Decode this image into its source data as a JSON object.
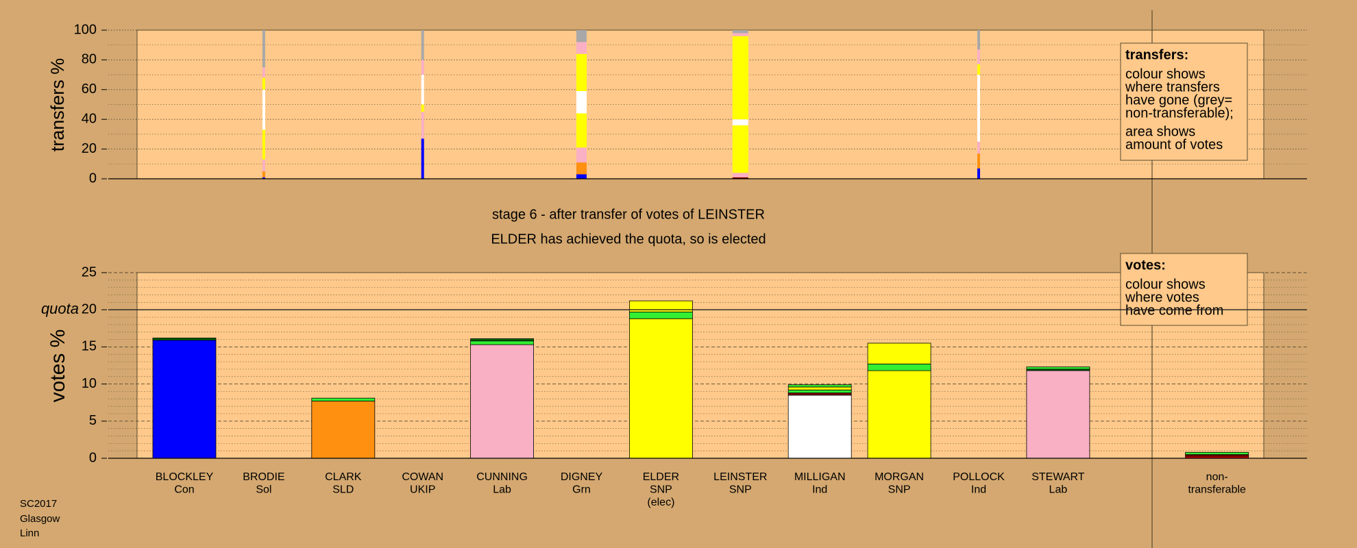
{
  "chart_data": [
    {
      "type": "bar",
      "ylabel": "transfers %",
      "ylim": [
        0,
        100
      ],
      "yticks": [
        0,
        20,
        40,
        60,
        80,
        100
      ],
      "grid": true,
      "legend": {
        "title": "transfers:",
        "lines": [
          "colour shows",
          "where transfers",
          "have gone (grey=",
          "non-transferable);",
          "area shows",
          "amount of votes"
        ]
      },
      "stacks": [
        null,
        {
          "width": 0.4,
          "segments": [
            {
              "color": "#0000ff",
              "value": 1
            },
            {
              "color": "#ff9010",
              "value": 4
            },
            {
              "color": "#f9b0c4",
              "value": 8
            },
            {
              "color": "#ffff00",
              "value": 20
            },
            {
              "color": "#ffffff",
              "value": 27
            },
            {
              "color": "#ffff00",
              "value": 8
            },
            {
              "color": "#f9b0c4",
              "value": 7
            },
            {
              "color": "#a8a8a8",
              "value": 25
            }
          ]
        },
        null,
        {
          "width": 0.4,
          "segments": [
            {
              "color": "#0000ff",
              "value": 27
            },
            {
              "color": "#f9b0c4",
              "value": 18
            },
            {
              "color": "#ffff00",
              "value": 5
            },
            {
              "color": "#ffffff",
              "value": 20
            },
            {
              "color": "#f9b0c4",
              "value": 10
            },
            {
              "color": "#a8a8a8",
              "value": 20
            }
          ]
        },
        null,
        {
          "width": 1.5,
          "segments": [
            {
              "color": "#0000ff",
              "value": 3
            },
            {
              "color": "#ff9010",
              "value": 8
            },
            {
              "color": "#f9b0c4",
              "value": 10
            },
            {
              "color": "#ffff00",
              "value": 23
            },
            {
              "color": "#ffffff",
              "value": 15
            },
            {
              "color": "#ffff00",
              "value": 25
            },
            {
              "color": "#f9b0c4",
              "value": 8
            },
            {
              "color": "#a8a8a8",
              "value": 8
            }
          ]
        },
        null,
        {
          "width": 2.3,
          "segments": [
            {
              "color": "#800000",
              "value": 1
            },
            {
              "color": "#f9b0c4",
              "value": 3
            },
            {
              "color": "#ffff00",
              "value": 32
            },
            {
              "color": "#ffffff",
              "value": 4
            },
            {
              "color": "#ffff00",
              "value": 56
            },
            {
              "color": "#f9b0c4",
              "value": 2
            },
            {
              "color": "#a8a8a8",
              "value": 2
            }
          ]
        },
        null,
        null,
        {
          "width": 0.4,
          "segments": [
            {
              "color": "#0000ff",
              "value": 7
            },
            {
              "color": "#ff9010",
              "value": 10
            },
            {
              "color": "#f9b0c4",
              "value": 8
            },
            {
              "color": "#ffffff",
              "value": 45
            },
            {
              "color": "#ffff00",
              "value": 7
            },
            {
              "color": "#f9b0c4",
              "value": 10
            },
            {
              "color": "#a8a8a8",
              "value": 13
            }
          ]
        },
        null,
        null,
        null
      ]
    },
    {
      "type": "bar",
      "title": "stage 6 - after transfer of votes of LEINSTER",
      "subtitle": "ELDER has achieved the quota, so is elected",
      "ylabel": "votes %",
      "ylim": [
        0,
        25
      ],
      "yticks": [
        0,
        5,
        10,
        15,
        20,
        25
      ],
      "quota": {
        "value": 20,
        "label": "quota"
      },
      "grid": true,
      "legend": {
        "title": "votes:",
        "lines": [
          "colour shows",
          "where votes",
          "have come from"
        ]
      },
      "categories": [
        [
          "BLOCKLEY",
          "Con"
        ],
        [
          "BRODIE",
          "Sol"
        ],
        [
          "CLARK",
          "SLD"
        ],
        [
          "COWAN",
          "UKIP"
        ],
        [
          "CUNNING",
          "Lab"
        ],
        [
          "DIGNEY",
          "Grn"
        ],
        [
          "ELDER",
          "SNP",
          "(elec)"
        ],
        [
          "LEINSTER",
          "SNP"
        ],
        [
          "MILLIGAN",
          "Ind"
        ],
        [
          "MORGAN",
          "SNP"
        ],
        [
          "POLLOCK",
          "Ind"
        ],
        [
          "STEWART",
          "Lab"
        ],
        null,
        [
          "non-",
          "transferable"
        ]
      ],
      "stacks": [
        [
          {
            "color": "#0000ff",
            "value": 15.9
          },
          {
            "color": "#006400",
            "value": 0.3
          }
        ],
        null,
        [
          {
            "color": "#ff9010",
            "value": 7.7
          },
          {
            "color": "#33ee33",
            "value": 0.4
          }
        ],
        null,
        [
          {
            "color": "#f9b0c4",
            "value": 15.3
          },
          {
            "color": "#33ee33",
            "value": 0.5
          },
          {
            "color": "#006400",
            "value": 0.3
          }
        ],
        null,
        [
          {
            "color": "#ffff00",
            "value": 18.8
          },
          {
            "color": "#33ee33",
            "value": 0.9
          },
          {
            "color": "#ffff00",
            "value": 1.5
          }
        ],
        null,
        [
          {
            "color": "#ffffff",
            "value": 8.5
          },
          {
            "color": "#800000",
            "value": 0.3
          },
          {
            "color": "#33ee33",
            "value": 0.4
          },
          {
            "color": "#ffff00",
            "value": 0.4
          },
          {
            "color": "#33ee33",
            "value": 0.3
          }
        ],
        [
          {
            "color": "#ffff00",
            "value": 11.8
          },
          {
            "color": "#33ee33",
            "value": 0.9
          },
          {
            "color": "#ffff00",
            "value": 2.8
          }
        ],
        null,
        [
          {
            "color": "#f9b0c4",
            "value": 11.8
          },
          {
            "color": "#006400",
            "value": 0.2
          },
          {
            "color": "#33ee33",
            "value": 0.3
          }
        ],
        null,
        [
          {
            "color": "#c00000",
            "value": 0.3
          },
          {
            "color": "#800000",
            "value": 0.2
          },
          {
            "color": "#33ee33",
            "value": 0.3
          }
        ]
      ]
    }
  ],
  "footer": [
    "SC2017",
    "Glasgow",
    "Linn"
  ]
}
